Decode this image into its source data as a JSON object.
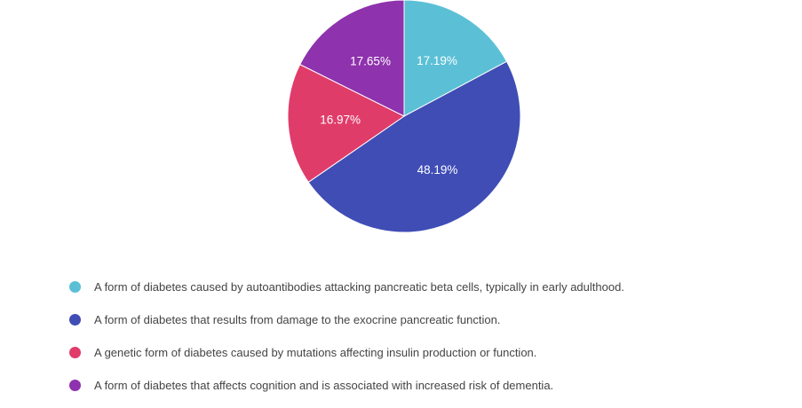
{
  "chart_data": {
    "type": "pie",
    "slices": [
      {
        "label": "A form of diabetes caused by autoantibodies attacking pancreatic beta cells, typically in early adulthood.",
        "value": 17.19,
        "value_label": "17.19%",
        "color": "#5bc0d6"
      },
      {
        "label": "A form of diabetes that results from damage to the exocrine pancreatic function.",
        "value": 48.19,
        "value_label": "48.19%",
        "color": "#3f4db5"
      },
      {
        "label": "A genetic form of diabetes caused by mutations affecting insulin production or function.",
        "value": 16.97,
        "value_label": "16.97%",
        "color": "#e03c6a"
      },
      {
        "label": "A form of diabetes that affects cognition and is associated with increased risk of dementia.",
        "value": 17.65,
        "value_label": "17.65%",
        "color": "#8e32ad"
      }
    ],
    "legend_position": "bottom",
    "start_angle": "12 o'clock",
    "direction": "clockwise"
  }
}
